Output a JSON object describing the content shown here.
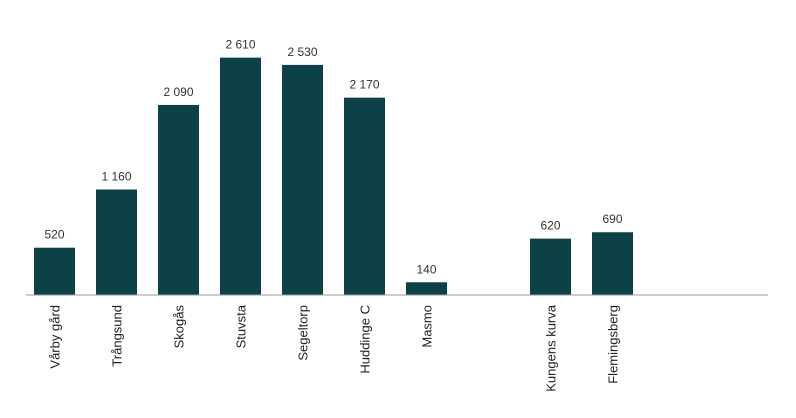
{
  "chart_data": {
    "type": "bar",
    "categories": [
      "Vårby gård",
      "Trångsund",
      "Skogås",
      "Stuvsta",
      "Segeltorp",
      "Huddinge C",
      "Masmo",
      "",
      "Kungens kurva",
      "Flemingsberg",
      "",
      ""
    ],
    "values": [
      520,
      1160,
      2090,
      2610,
      2530,
      2170,
      140,
      null,
      620,
      690,
      null,
      null
    ],
    "value_labels": [
      "520",
      "1 160",
      "2 090",
      "2 610",
      "2 530",
      "2 170",
      "140",
      "",
      "620",
      "690",
      "",
      ""
    ],
    "ylim": [
      0,
      2650
    ],
    "grid": false,
    "legend": "none",
    "bar_color": "#0d4148",
    "axis_color": "#9a9a9a"
  }
}
